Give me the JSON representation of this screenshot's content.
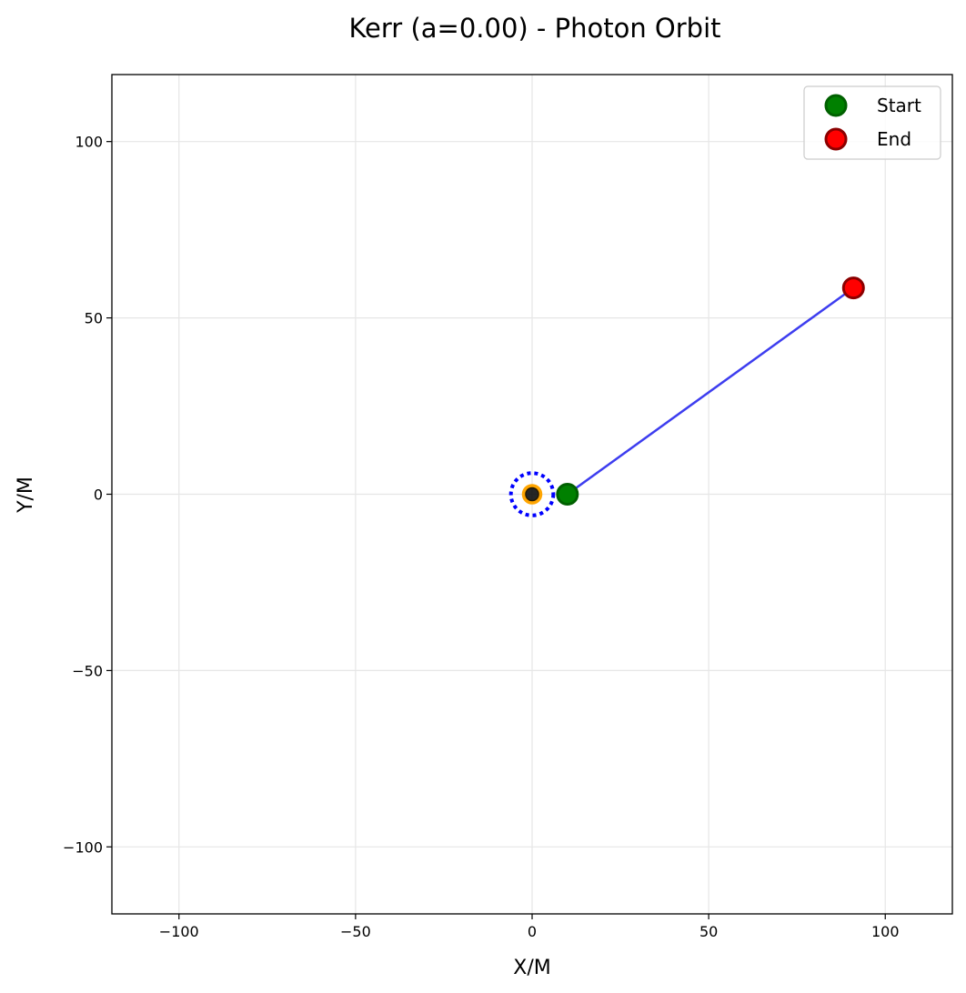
{
  "chart_data": {
    "type": "line",
    "title": "Kerr (a=0.00) - Photon Orbit",
    "xlabel": "X/M",
    "ylabel": "Y/M",
    "xlim": [
      -119,
      119
    ],
    "ylim": [
      -119,
      119
    ],
    "xticks": [
      -100,
      -50,
      0,
      50,
      100
    ],
    "yticks": [
      -100,
      -50,
      0,
      50,
      100
    ],
    "xtick_labels": [
      "−100",
      "−50",
      "0",
      "50",
      "100"
    ],
    "ytick_labels": [
      "−100",
      "−50",
      "0",
      "50",
      "100"
    ],
    "grid": true,
    "legend_position": "top-right",
    "series": [
      {
        "kind": "line",
        "color": "#3333ee",
        "x": [
          10,
          91
        ],
        "y": [
          0,
          58.5
        ]
      }
    ],
    "markers": [
      {
        "name": "Start",
        "x": 10,
        "y": 0,
        "fill": "#008000",
        "edge": "#006000"
      },
      {
        "name": "End",
        "x": 91,
        "y": 58.5,
        "fill": "#ff0000",
        "edge": "#8b0000"
      }
    ],
    "shapes": {
      "black_hole": {
        "x": 0,
        "y": 0,
        "radius": 2,
        "color": "#000000"
      },
      "horizon": {
        "x": 0,
        "y": 0,
        "radius": 2,
        "color": "#ffa500"
      },
      "photon_sphere": {
        "x": 0,
        "y": 0,
        "radius": 6,
        "color": "#0000ff"
      }
    },
    "legend": [
      "Start",
      "End"
    ]
  }
}
